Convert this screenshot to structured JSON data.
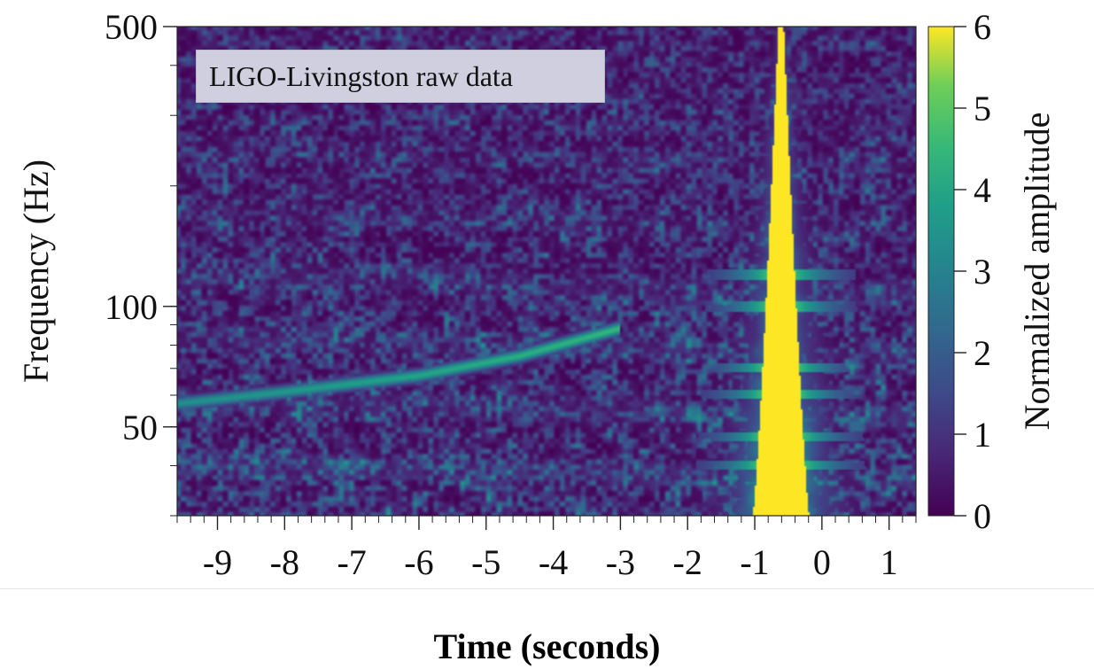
{
  "chart_data": {
    "type": "heatmap",
    "title": "",
    "annotation": "LIGO-Livingston raw data",
    "xlabel": "Time (seconds)",
    "ylabel": "Frequency (Hz)",
    "colorbar_label": "Normalized amplitude",
    "xlim": [
      -9.6,
      1.4
    ],
    "ylim": [
      30,
      500
    ],
    "yscale": "log",
    "x_ticks": [
      -9,
      -8,
      -7,
      -6,
      -5,
      -4,
      -3,
      -2,
      -1,
      0,
      1
    ],
    "x_tick_labels": [
      "-9",
      "-8",
      "-7",
      "-6",
      "-5",
      "-4",
      "-3",
      "-2",
      "-1",
      "0",
      "1"
    ],
    "y_ticks": [
      50,
      100,
      500
    ],
    "y_tick_labels": [
      "50",
      "100",
      "500"
    ],
    "colorbar_range": [
      0,
      6
    ],
    "colorbar_ticks": [
      0,
      1,
      2,
      3,
      4,
      5,
      6
    ],
    "colorbar_tick_labels": [
      "0",
      "1",
      "2",
      "3",
      "4",
      "5",
      "6"
    ],
    "colormap": "viridis",
    "colors": {
      "low": "#440154",
      "mid": "#21918c",
      "high": "#fde725"
    },
    "features": {
      "glitch": {
        "center_time": -0.6,
        "half_width_at_low_freq": 0.42,
        "half_width_at_high_freq": 0.04,
        "amplitude": 6
      },
      "chirp": {
        "time": [
          -9.6,
          -8,
          -6,
          -4.5,
          -3
        ],
        "frequency": [
          57,
          61,
          67,
          75,
          88
        ],
        "amplitude": 4.5
      }
    }
  }
}
